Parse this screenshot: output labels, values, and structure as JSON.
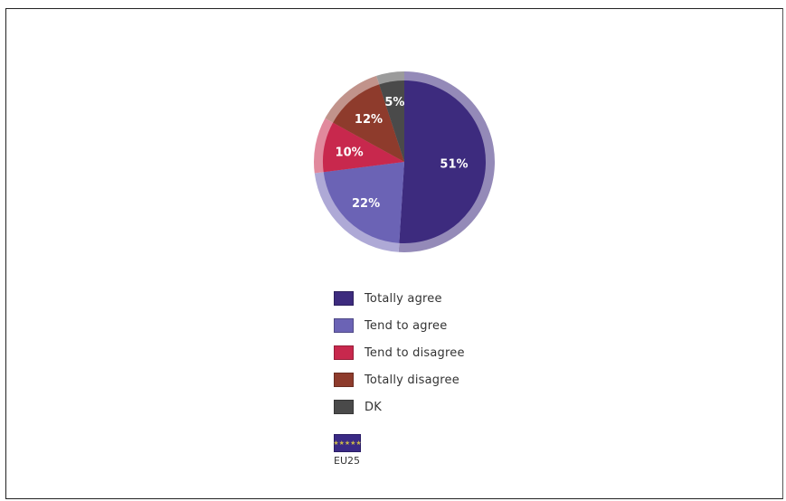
{
  "chart_data": {
    "type": "pie",
    "title": "",
    "slices": [
      {
        "label": "Totally agree",
        "value": 51,
        "value_label": "51%",
        "color": "#3d2b7e"
      },
      {
        "label": "Tend to agree",
        "value": 22,
        "value_label": "22%",
        "color": "#6b63b5"
      },
      {
        "label": "Tend to disagree",
        "value": 10,
        "value_label": "10%",
        "color": "#c8284d"
      },
      {
        "label": "Totally disagree",
        "value": 12,
        "value_label": "12%",
        "color": "#8e3b2c"
      },
      {
        "label": "DK",
        "value": 5,
        "value_label": "5%",
        "color": "#4a4a4a"
      }
    ],
    "legend_placement": "bottom"
  },
  "region": {
    "label": "EU25",
    "icon": "eu-flag-icon",
    "stars": "★★★★★"
  }
}
